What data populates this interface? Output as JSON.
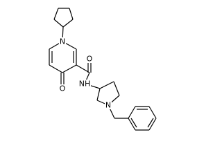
{
  "atoms": [
    {
      "label": "N"
    },
    {
      "label": "O"
    },
    {
      "label": "O"
    },
    {
      "label": "NH"
    },
    {
      "label": "N"
    }
  ]
}
